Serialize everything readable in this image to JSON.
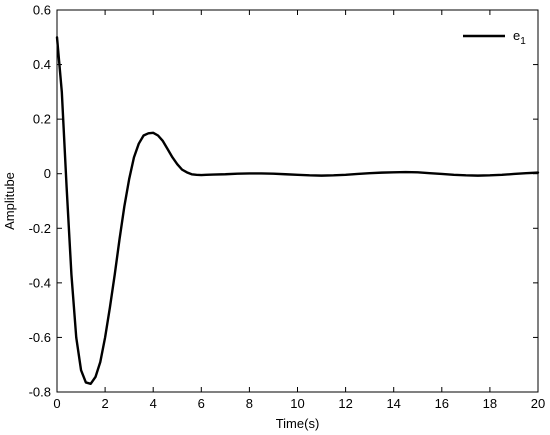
{
  "chart_data": {
    "type": "line",
    "title": "",
    "xlabel": "Time(s)",
    "ylabel": "Amplitube",
    "xlim": [
      0,
      20
    ],
    "ylim": [
      -0.8,
      0.6
    ],
    "xticks": [
      0,
      2,
      4,
      6,
      8,
      10,
      12,
      14,
      16,
      18,
      20
    ],
    "yticks": [
      -0.8,
      -0.6,
      -0.4,
      -0.2,
      0,
      0.2,
      0.4,
      0.6
    ],
    "grid": false,
    "legend": {
      "position": "top-right",
      "entries": [
        {
          "base": "e",
          "sub": "1"
        }
      ]
    },
    "series": [
      {
        "color": "#000000",
        "x": [
          0,
          0.2,
          0.4,
          0.6,
          0.8,
          1.0,
          1.2,
          1.4,
          1.6,
          1.8,
          2.0,
          2.2,
          2.4,
          2.6,
          2.8,
          3.0,
          3.2,
          3.4,
          3.6,
          3.8,
          4.0,
          4.2,
          4.4,
          4.6,
          4.8,
          5.0,
          5.2,
          5.4,
          5.6,
          5.8,
          6.0,
          6.2,
          6.5,
          7.0,
          7.5,
          8.0,
          8.5,
          9.0,
          9.5,
          10.0,
          10.5,
          11.0,
          11.5,
          12.0,
          12.5,
          13.0,
          13.5,
          14.0,
          14.5,
          15.0,
          15.5,
          16.0,
          16.5,
          17.0,
          17.5,
          18.0,
          18.5,
          19.0,
          19.5,
          20.0
        ],
        "y": [
          0.5,
          0.3,
          -0.05,
          -0.37,
          -0.6,
          -0.72,
          -0.765,
          -0.77,
          -0.745,
          -0.69,
          -0.6,
          -0.49,
          -0.37,
          -0.24,
          -0.12,
          -0.02,
          0.06,
          0.11,
          0.14,
          0.148,
          0.15,
          0.14,
          0.12,
          0.09,
          0.06,
          0.035,
          0.015,
          0.005,
          -0.002,
          -0.004,
          -0.005,
          -0.004,
          -0.003,
          -0.002,
          0.0,
          0.001,
          0.001,
          0.0,
          -0.002,
          -0.004,
          -0.006,
          -0.007,
          -0.006,
          -0.004,
          -0.001,
          0.002,
          0.004,
          0.005,
          0.006,
          0.005,
          0.002,
          -0.001,
          -0.004,
          -0.006,
          -0.007,
          -0.006,
          -0.004,
          -0.001,
          0.002,
          0.004
        ]
      }
    ]
  }
}
